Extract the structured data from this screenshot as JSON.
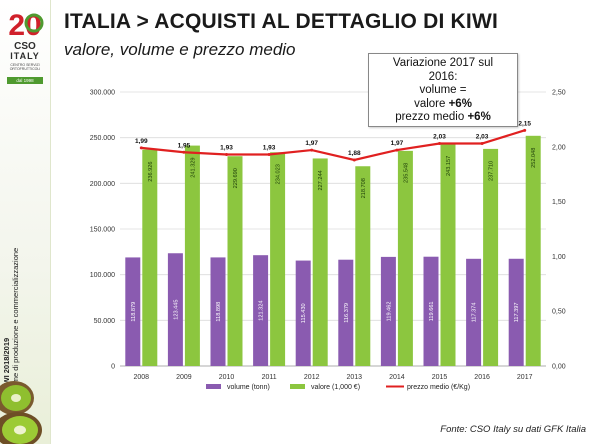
{
  "slide": {
    "title": "ITALIA > ACQUISTI AL DETTAGLIO DI KIWI",
    "subtitle": "valore, volume e prezzo medio",
    "source": "Fonte: CSO Italy su dati GFK Italia"
  },
  "note": {
    "line1": "Variazione 2017 sul",
    "line2": "2016:",
    "volume_label": "volume",
    "volume_value": "=",
    "valore_label": "valore",
    "valore_value": "+6%",
    "prezzo_label": "prezzo medio",
    "prezzo_value": "+6%"
  },
  "sidebar": {
    "logo_number": "20",
    "logo_name": "CSO",
    "logo_country": "ITALY",
    "logo_tagline": "CENTRO SERVIZI ORTOFRUTTICOLI",
    "logo_since": "dal 1998",
    "vertical_line1": "KIWI 2018/2019",
    "vertical_line2": "Stime di produzione e commercializzazione"
  },
  "chart_data": {
    "type": "bar",
    "categories": [
      "2008",
      "2009",
      "2010",
      "2011",
      "2012",
      "2013",
      "2014",
      "2015",
      "2016",
      "2017"
    ],
    "series": [
      {
        "name": "volume (tonn)",
        "type": "bar",
        "axis": "left",
        "color": "#8a5bb0",
        "values": [
          118879,
          123445,
          118898,
          121324,
          115430,
          116379,
          119462,
          119661,
          117374,
          117397
        ],
        "labels": [
          "118.879",
          "123.445",
          "118.898",
          "121.324",
          "115.430",
          "116.379",
          "119.462",
          "119.661",
          "117.374",
          "117.397"
        ]
      },
      {
        "name": "valore (1,000 €)",
        "type": "bar",
        "axis": "left",
        "color": "#8cc63f",
        "values": [
          236926,
          241329,
          229690,
          234023,
          227244,
          218708,
          235548,
          243157,
          237710,
          252048
        ],
        "labels": [
          "236.926",
          "241.329",
          "229.690",
          "234.023",
          "227.244",
          "218.708",
          "235.548",
          "243.157",
          "237.710",
          "252.048"
        ]
      },
      {
        "name": "prezzo medio (€/Kg)",
        "type": "line",
        "axis": "right",
        "color": "#e02020",
        "values": [
          1.99,
          1.95,
          1.93,
          1.93,
          1.97,
          1.88,
          1.97,
          2.03,
          2.03,
          2.15
        ],
        "labels": [
          "1,99",
          "1,95",
          "1,93",
          "1,93",
          "1,97",
          "1,88",
          "1,97",
          "2,03",
          "2,03",
          "2,15"
        ]
      }
    ],
    "y_left": {
      "min": 0,
      "max": 300000,
      "ticks": [
        "0",
        "50.000",
        "100.000",
        "150.000",
        "200.000",
        "250.000",
        "300.000"
      ]
    },
    "y_right": {
      "min": 0,
      "max": 2.5,
      "ticks": [
        "0,00",
        "0,50",
        "1,00",
        "1,50",
        "2,00",
        "2,50"
      ]
    },
    "grid": true,
    "legend_position": "bottom"
  },
  "colors": {
    "title": "#1a1a1a",
    "volume": "#8a5bb0",
    "valore": "#8cc63f",
    "prezzo": "#e02020",
    "logo_red": "#d0202a",
    "logo_green": "#4f9a2f"
  }
}
